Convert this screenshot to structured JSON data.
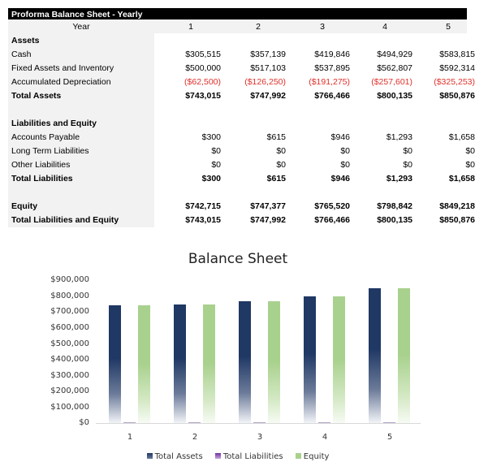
{
  "sheet": {
    "title": "Proforma Balance Sheet - Yearly",
    "year_label": "Year",
    "years": [
      "1",
      "2",
      "3",
      "4",
      "5"
    ],
    "sections": {
      "assets_heading": "Assets",
      "liab_heading": "Liabilities and Equity"
    },
    "rows": {
      "cash": {
        "label": "Cash",
        "values": [
          "$305,515",
          "$357,139",
          "$419,846",
          "$494,929",
          "$583,815"
        ]
      },
      "fixed": {
        "label": "Fixed Assets and Inventory",
        "values": [
          "$500,000",
          "$517,103",
          "$537,895",
          "$562,807",
          "$592,314"
        ]
      },
      "depr": {
        "label": "Accumulated Depreciation",
        "values": [
          "($62,500)",
          "($126,250)",
          "($191,275)",
          "($257,601)",
          "($325,253)"
        ]
      },
      "total_assets": {
        "label": "Total Assets",
        "values": [
          "$743,015",
          "$747,992",
          "$766,466",
          "$800,135",
          "$850,876"
        ]
      },
      "ap": {
        "label": "Accounts Payable",
        "values": [
          "$300",
          "$615",
          "$946",
          "$1,293",
          "$1,658"
        ]
      },
      "ltl": {
        "label": "Long Term Liabilities",
        "values": [
          "$0",
          "$0",
          "$0",
          "$0",
          "$0"
        ]
      },
      "other": {
        "label": "Other Liabilities",
        "values": [
          "$0",
          "$0",
          "$0",
          "$0",
          "$0"
        ]
      },
      "total_liab": {
        "label": "Total Liabilities",
        "values": [
          "$300",
          "$615",
          "$946",
          "$1,293",
          "$1,658"
        ]
      },
      "equity": {
        "label": "Equity",
        "values": [
          "$742,715",
          "$747,377",
          "$765,520",
          "$798,842",
          "$849,218"
        ]
      },
      "total_le": {
        "label": "Total Liabilities and Equity",
        "values": [
          "$743,015",
          "$747,992",
          "$766,466",
          "$800,135",
          "$850,876"
        ]
      }
    },
    "negative_color": "#e0302a"
  },
  "chart_data": {
    "type": "bar",
    "title": "Balance Sheet",
    "xlabel": "",
    "ylabel": "",
    "categories": [
      "1",
      "2",
      "3",
      "4",
      "5"
    ],
    "series": [
      {
        "name": "Total Assets",
        "color": "#1f3864",
        "values": [
          743015,
          747992,
          766466,
          800135,
          850876
        ]
      },
      {
        "name": "Total Liabilities",
        "color": "#7030a0",
        "values": [
          300,
          615,
          946,
          1293,
          1658
        ]
      },
      {
        "name": "Equity",
        "color": "#a9d18e",
        "values": [
          742715,
          747377,
          765520,
          798842,
          849218
        ]
      }
    ],
    "ylim": [
      0,
      900000
    ],
    "yticks": [
      "$900,000",
      "$800,000",
      "$700,000",
      "$600,000",
      "$500,000",
      "$400,000",
      "$300,000",
      "$200,000",
      "$100,000",
      "$0"
    ],
    "grid": false,
    "legend_position": "bottom"
  }
}
